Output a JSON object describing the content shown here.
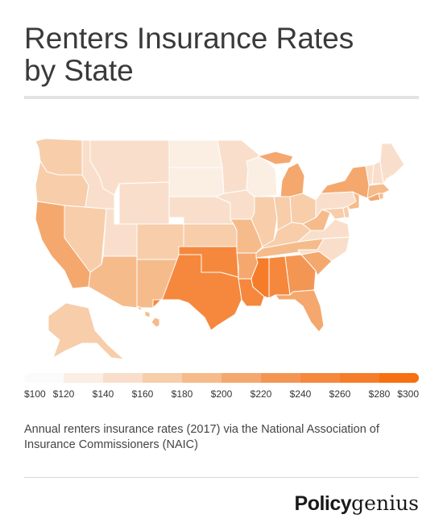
{
  "title": {
    "line1": "Renters Insurance Rates",
    "line2": "by State"
  },
  "colors": {
    "scale": [
      "#fbfbfb",
      "#fbeee3",
      "#f9dfcb",
      "#f7cdaa",
      "#f6bb8b",
      "#f4a86e",
      "#f49653",
      "#f5883d",
      "#f57d2a",
      "#f66f10"
    ],
    "state_border": "#ffffff"
  },
  "legend": {
    "labels": [
      "$100",
      "$120",
      "$140",
      "$160",
      "$180",
      "$200",
      "$220",
      "$240",
      "$260",
      "$280",
      "$300"
    ]
  },
  "map": {
    "states": [
      {
        "id": "WA",
        "rate": 170
      },
      {
        "id": "OR",
        "rate": 170
      },
      {
        "id": "CA",
        "rate": 205
      },
      {
        "id": "NV",
        "rate": 175
      },
      {
        "id": "ID",
        "rate": 145
      },
      {
        "id": "MT",
        "rate": 150
      },
      {
        "id": "WY",
        "rate": 150
      },
      {
        "id": "UT",
        "rate": 145
      },
      {
        "id": "AZ",
        "rate": 180
      },
      {
        "id": "CO",
        "rate": 165
      },
      {
        "id": "NM",
        "rate": 195
      },
      {
        "id": "ND",
        "rate": 130
      },
      {
        "id": "SD",
        "rate": 135
      },
      {
        "id": "NE",
        "rate": 150
      },
      {
        "id": "KS",
        "rate": 165
      },
      {
        "id": "OK",
        "rate": 240
      },
      {
        "id": "TX",
        "rate": 240
      },
      {
        "id": "MN",
        "rate": 140
      },
      {
        "id": "IA",
        "rate": 145
      },
      {
        "id": "MO",
        "rate": 180
      },
      {
        "id": "AR",
        "rate": 215
      },
      {
        "id": "LA",
        "rate": 240
      },
      {
        "id": "WI",
        "rate": 125
      },
      {
        "id": "IL",
        "rate": 170
      },
      {
        "id": "MI",
        "rate": 210
      },
      {
        "id": "IN",
        "rate": 175
      },
      {
        "id": "OH",
        "rate": 170
      },
      {
        "id": "KY",
        "rate": 170
      },
      {
        "id": "TN",
        "rate": 185
      },
      {
        "id": "MS",
        "rate": 270
      },
      {
        "id": "AL",
        "rate": 245
      },
      {
        "id": "GA",
        "rate": 220
      },
      {
        "id": "FL",
        "rate": 200
      },
      {
        "id": "SC",
        "rate": 200
      },
      {
        "id": "NC",
        "rate": 150
      },
      {
        "id": "VA",
        "rate": 150
      },
      {
        "id": "WV",
        "rate": 185
      },
      {
        "id": "PA",
        "rate": 150
      },
      {
        "id": "NY",
        "rate": 200
      },
      {
        "id": "VT",
        "rate": 145
      },
      {
        "id": "NH",
        "rate": 145
      },
      {
        "id": "ME",
        "rate": 140
      },
      {
        "id": "MA",
        "rate": 190
      },
      {
        "id": "CT",
        "rate": 200
      },
      {
        "id": "RI",
        "rate": 195
      },
      {
        "id": "NJ",
        "rate": 180
      },
      {
        "id": "DE",
        "rate": 170
      },
      {
        "id": "MD",
        "rate": 165
      },
      {
        "id": "AK",
        "rate": 165
      },
      {
        "id": "HI",
        "rate": 185
      }
    ]
  },
  "caption": "Annual renters insurance rates (2017) via the National Association of Insurance Commissioners (NAIC)",
  "brand": {
    "part1": "Policy",
    "part2": "genius"
  }
}
